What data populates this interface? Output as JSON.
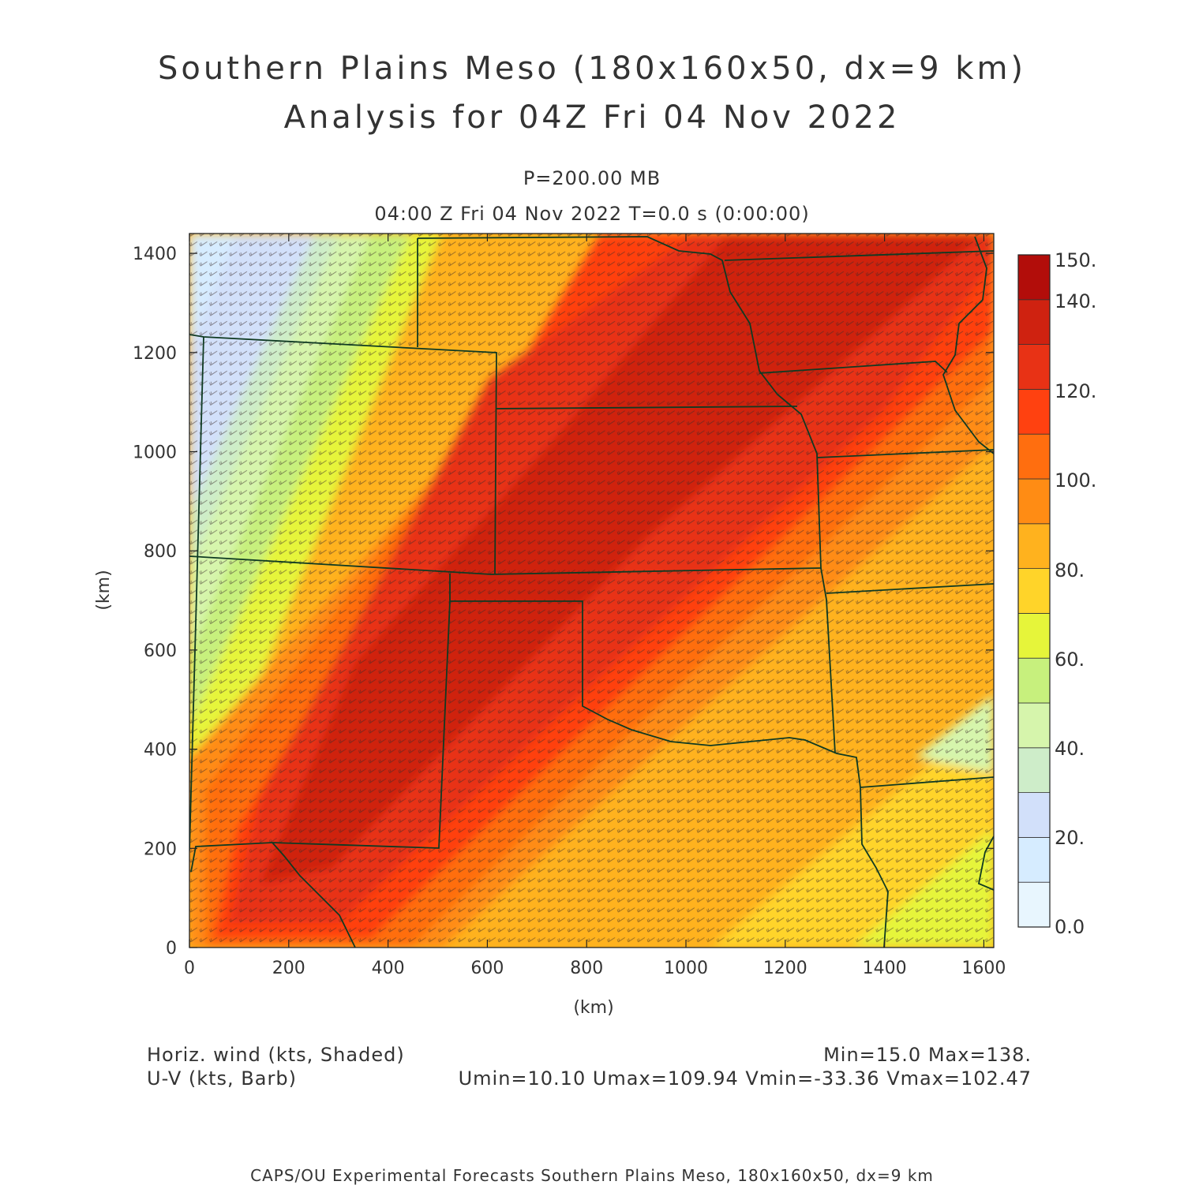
{
  "title": {
    "line1": "Southern Plains Meso (180x160x50, dx=9 km)",
    "line2": "Analysis for 04Z Fri 04 Nov 2022"
  },
  "subtitle": {
    "level": "P=200.00 MB",
    "valid": "04:00 Z Fri 04 Nov 2022   T=0.0 s (0:00:00)"
  },
  "axes": {
    "x": {
      "label": "(km)",
      "range": [
        0,
        1620
      ],
      "ticks": [
        0,
        200,
        400,
        600,
        800,
        1000,
        1200,
        1400,
        1600
      ]
    },
    "y": {
      "label": "(km)",
      "range": [
        0,
        1440
      ],
      "ticks": [
        0,
        200,
        400,
        600,
        800,
        1000,
        1200,
        1400
      ]
    }
  },
  "colorbar": {
    "labels": [
      "0.0",
      "20.",
      "40.",
      "60.",
      "80.",
      "100.",
      "120.",
      "140.",
      "150."
    ],
    "colors": [
      "#e8f6fe",
      "#d6ecff",
      "#d2e0fa",
      "#ceedc9",
      "#d6f5ac",
      "#c7f07d",
      "#e6f53a",
      "#ffd429",
      "#ffb21e",
      "#ff8c14",
      "#ff6e0f",
      "#ff4110",
      "#e83215",
      "#cf2210",
      "#b20d0a"
    ]
  },
  "footer": {
    "left1": "Horiz. wind (kts, Shaded)",
    "left2": "U-V (kts, Barb)",
    "right1": "Min=15.0 Max=138.",
    "right2": "Umin=10.10 Umax=109.94 Vmin=-33.36 Vmax=102.47",
    "credit": "CAPS/OU Experimental Forecasts  Southern Plains Meso, 180x160x50, dx=9 km"
  }
}
